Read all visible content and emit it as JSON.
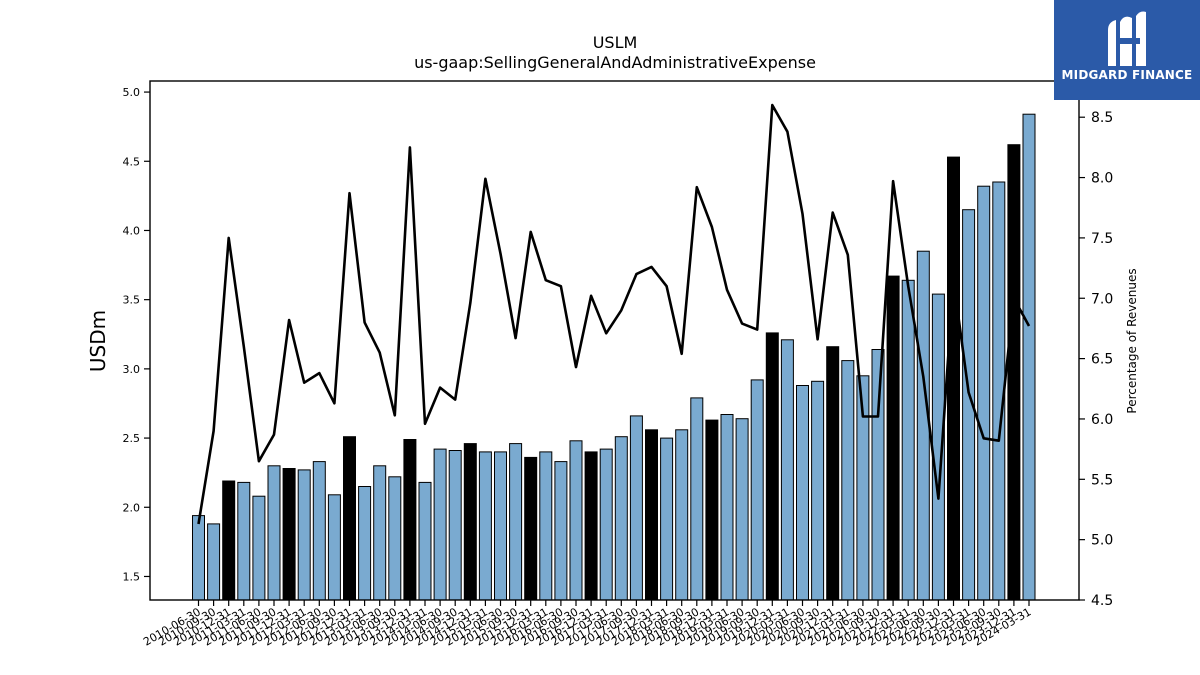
{
  "brand": {
    "name": "MIDGARD FINANCE",
    "logo_icon": "midgard-finance-logo-icon",
    "color": "#2b5aa8"
  },
  "chart_data": {
    "type": "bar",
    "title": "USLM",
    "subtitle": "us-gaap:SellingGeneralAndAdministrativeExpense",
    "ylabel": "USDm",
    "y2label": "Percentage of Revenues",
    "ylim": [
      1.33,
      5.08
    ],
    "y2lim": [
      4.5,
      8.8
    ],
    "yticks": [
      1.5,
      2.0,
      2.5,
      3.0,
      3.5,
      4.0,
      4.5,
      5.0
    ],
    "y2ticks": [
      4.5,
      5.0,
      5.5,
      6.0,
      6.5,
      7.0,
      7.5,
      8.0,
      8.5
    ],
    "colors": {
      "quarter_bar": "#7aaad0",
      "year_end_bar": "#000000",
      "line": "#000000"
    },
    "categories": [
      "2010-06-30",
      "2010-09-30",
      "2010-12-31",
      "2011-03-31",
      "2011-06-30",
      "2011-09-30",
      "2011-12-31",
      "2012-03-31",
      "2012-06-30",
      "2012-09-30",
      "2012-12-31",
      "2013-03-31",
      "2013-06-30",
      "2013-09-30",
      "2013-12-31",
      "2014-03-31",
      "2014-06-30",
      "2014-09-30",
      "2014-12-31",
      "2015-03-31",
      "2015-06-30",
      "2015-09-30",
      "2015-12-31",
      "2016-03-31",
      "2016-06-30",
      "2016-09-30",
      "2016-12-31",
      "2017-03-31",
      "2017-06-30",
      "2017-09-30",
      "2017-12-31",
      "2018-03-31",
      "2018-06-30",
      "2018-09-30",
      "2018-12-31",
      "2019-03-31",
      "2019-06-30",
      "2019-09-30",
      "2019-12-31",
      "2020-03-31",
      "2020-06-30",
      "2020-09-30",
      "2020-12-31",
      "2021-03-31",
      "2021-06-30",
      "2021-09-30",
      "2021-12-31",
      "2022-03-31",
      "2022-06-30",
      "2022-09-30",
      "2022-12-31",
      "2023-03-31",
      "2023-06-30",
      "2023-09-30",
      "2023-12-31",
      "2024-03-31"
    ],
    "series": [
      {
        "name": "SG&A",
        "values": [
          1.94,
          1.88,
          2.19,
          2.18,
          2.08,
          2.3,
          2.28,
          2.27,
          2.33,
          2.09,
          2.51,
          2.15,
          2.3,
          2.22,
          2.49,
          2.18,
          2.42,
          2.41,
          2.46,
          2.4,
          2.4,
          2.46,
          2.36,
          2.4,
          2.33,
          2.48,
          2.4,
          2.42,
          2.51,
          2.66,
          2.56,
          2.5,
          2.56,
          2.79,
          2.63,
          2.67,
          2.64,
          2.92,
          3.26,
          3.21,
          2.88,
          2.91,
          3.16,
          3.06,
          2.95,
          3.14,
          3.67,
          3.64,
          3.85,
          3.54,
          4.53,
          4.15,
          4.32,
          4.35,
          4.62,
          4.84
        ],
        "year_end": [
          false,
          false,
          true,
          false,
          false,
          false,
          true,
          false,
          false,
          false,
          true,
          false,
          false,
          false,
          true,
          false,
          false,
          false,
          true,
          false,
          false,
          false,
          true,
          false,
          false,
          false,
          true,
          false,
          false,
          false,
          true,
          false,
          false,
          false,
          true,
          false,
          false,
          false,
          true,
          false,
          false,
          false,
          true,
          false,
          false,
          false,
          true,
          false,
          false,
          false,
          true,
          false,
          false,
          false,
          true,
          false
        ]
      },
      {
        "name": "Percentage of Revenues",
        "values": [
          5.13,
          5.9,
          7.5,
          6.6,
          5.65,
          5.87,
          6.82,
          6.3,
          6.38,
          6.13,
          7.87,
          6.8,
          6.55,
          6.03,
          8.25,
          5.96,
          6.26,
          6.16,
          6.96,
          7.99,
          7.37,
          6.67,
          7.55,
          7.15,
          7.1,
          6.43,
          7.02,
          6.71,
          6.9,
          7.2,
          7.26,
          7.1,
          6.54,
          7.92,
          7.59,
          7.07,
          6.79,
          6.74,
          8.6,
          8.38,
          7.7,
          6.66,
          7.71,
          7.36,
          6.02,
          6.02,
          7.97,
          7.1,
          6.35,
          5.34,
          7.15,
          6.22,
          5.84,
          5.82,
          7.0,
          6.77
        ]
      }
    ]
  }
}
